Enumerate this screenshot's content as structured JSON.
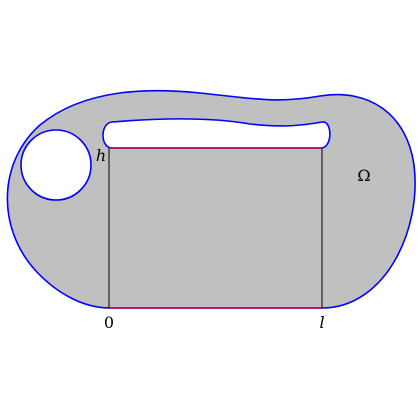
{
  "labels": {
    "origin": "0",
    "length": "l",
    "height": "h",
    "domain": "Ω"
  },
  "colors": {
    "region_fill": "#c0c0c0",
    "outer_boundary": "#0000ff",
    "hole_boundary": "#0000ff",
    "rectangle_edges": "#c0004a",
    "vertical_segments": "#000000",
    "background": "#ffffff"
  }
}
